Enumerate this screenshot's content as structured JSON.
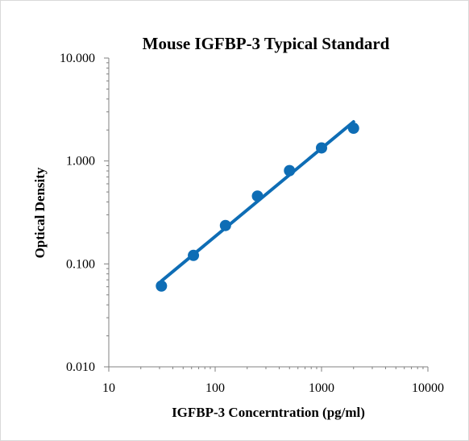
{
  "chart_data": {
    "type": "scatter",
    "title": "Mouse IGFBP-3 Typical Standard",
    "xlabel": "IGFBP-3 Concerntration (pg/ml)",
    "ylabel": "Optical Density",
    "xscale": "log",
    "yscale": "log",
    "xlim": [
      10,
      10000
    ],
    "ylim": [
      0.01,
      10
    ],
    "x_ticks": [
      10,
      100,
      1000,
      10000
    ],
    "x_tick_labels": [
      "10",
      "100",
      "1000",
      "10000"
    ],
    "y_ticks": [
      0.01,
      0.1,
      1,
      10
    ],
    "y_tick_labels": [
      "0.010",
      "0.100",
      "1.000",
      "10.000"
    ],
    "grid": false,
    "legend": "none",
    "series": [
      {
        "x": [
          31.25,
          62.5,
          125,
          250,
          500,
          1000,
          2000
        ],
        "y": [
          0.061,
          0.121,
          0.236,
          0.456,
          0.806,
          1.34,
          2.08
        ]
      }
    ],
    "trendline": {
      "type": "power",
      "x_range": [
        31.25,
        2000
      ]
    },
    "colors": {
      "series": "#0e6db5",
      "axis": "#808080"
    }
  }
}
